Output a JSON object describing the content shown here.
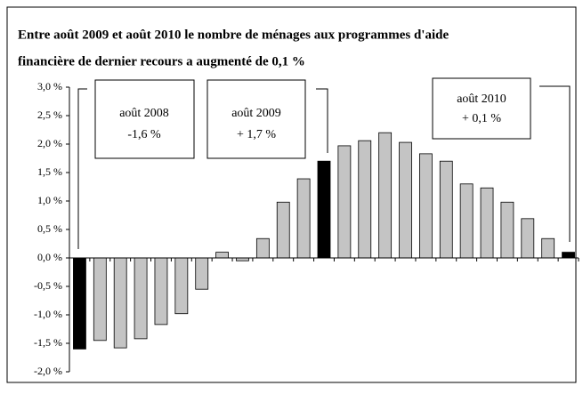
{
  "chart_data": {
    "type": "bar",
    "title": [
      "Entre août 2009 et août 2010 le nombre de ménages aux programmes d'aide",
      "financière de dernier recours a augmenté de 0,1 %"
    ],
    "categories": [
      null,
      null,
      null,
      null,
      null,
      null,
      null,
      null,
      null,
      null,
      null,
      null,
      null,
      null,
      null,
      null,
      null,
      null,
      null,
      null,
      null,
      null,
      null,
      null,
      null
    ],
    "values": [
      -1.6,
      -1.45,
      -1.58,
      -1.42,
      -1.17,
      -0.98,
      -0.55,
      0.1,
      -0.05,
      0.34,
      0.98,
      1.39,
      1.7,
      1.97,
      2.06,
      2.2,
      2.03,
      1.83,
      1.7,
      1.3,
      1.23,
      0.98,
      0.69,
      0.34,
      0.1
    ],
    "colors": [
      "#000000",
      "#c4c4c4",
      "#c4c4c4",
      "#c4c4c4",
      "#c4c4c4",
      "#c4c4c4",
      "#c4c4c4",
      "#c4c4c4",
      "#c4c4c4",
      "#c4c4c4",
      "#c4c4c4",
      "#c4c4c4",
      "#000000",
      "#c4c4c4",
      "#c4c4c4",
      "#c4c4c4",
      "#c4c4c4",
      "#c4c4c4",
      "#c4c4c4",
      "#c4c4c4",
      "#c4c4c4",
      "#c4c4c4",
      "#c4c4c4",
      "#c4c4c4",
      "#000000"
    ],
    "ylim": [
      -2.0,
      3.0
    ],
    "yticks": [
      {
        "value": 3.0,
        "label": "3,0 %"
      },
      {
        "value": 2.5,
        "label": "2,5 %"
      },
      {
        "value": 2.0,
        "label": "2,0 %"
      },
      {
        "value": 1.5,
        "label": "1,5 %"
      },
      {
        "value": 1.0,
        "label": "1,0 %"
      },
      {
        "value": 0.5,
        "label": "0,5 %"
      },
      {
        "value": 0.0,
        "label": "0,0 %"
      },
      {
        "value": -0.5,
        "label": "-0,5 %"
      },
      {
        "value": -1.0,
        "label": "-1,0 %"
      },
      {
        "value": -1.5,
        "label": "-1,5 %"
      },
      {
        "value": -2.0,
        "label": "-2,0 %"
      }
    ],
    "annotations": [
      [
        "août 2008",
        "-1,6 %"
      ],
      [
        "août 2009",
        "+ 1,7 %"
      ],
      [
        "août 2010",
        "+ 0,1 %"
      ]
    ]
  }
}
